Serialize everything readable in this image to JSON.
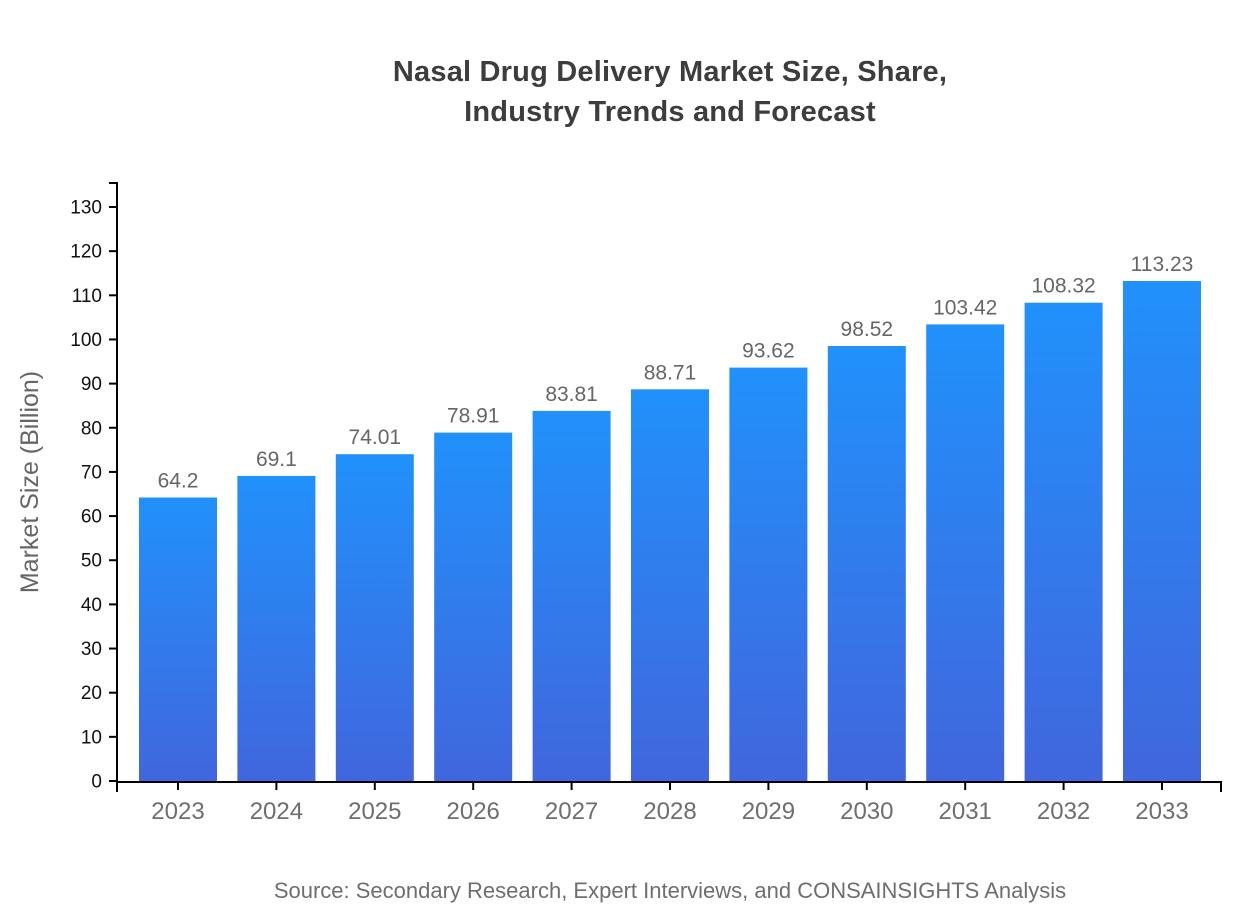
{
  "chart_data": {
    "type": "bar",
    "title": "Nasal Drug Delivery Market Size, Share, Industry Trends and Forecast",
    "title_lines": [
      "Nasal Drug Delivery Market Size, Share,",
      "Industry Trends and Forecast"
    ],
    "xlabel": "",
    "ylabel": "Market Size (Billion)",
    "categories": [
      "2023",
      "2024",
      "2025",
      "2026",
      "2027",
      "2028",
      "2029",
      "2030",
      "2031",
      "2032",
      "2033"
    ],
    "values": [
      64.2,
      69.1,
      74.01,
      78.91,
      83.81,
      88.71,
      93.62,
      98.52,
      103.42,
      108.32,
      113.23
    ],
    "value_labels": [
      "64.2",
      "69.1",
      "74.01",
      "78.91",
      "83.81",
      "88.71",
      "93.62",
      "98.52",
      "103.42",
      "108.32",
      "113.23"
    ],
    "ylim": [
      0,
      130
    ],
    "ytick_step": 10,
    "yticks": [
      0,
      10,
      20,
      30,
      40,
      50,
      60,
      70,
      80,
      90,
      100,
      110,
      120,
      130
    ],
    "grid": false,
    "legend": "none",
    "source": "Source: Secondary Research, Expert Interviews, and CONSAINSIGHTS Analysis",
    "colors": {
      "background": "#FFFFFF",
      "bar_gradient_top": "#2191FB",
      "bar_gradient_bottom": "#4166DD",
      "axis": "#000000",
      "ytick_label": "#111111",
      "category_label": "#6E6E6E",
      "value_label": "#666666",
      "title": "#3D3D3D",
      "ylabel_color": "#666666",
      "source_color": "#6E6E6E"
    }
  }
}
